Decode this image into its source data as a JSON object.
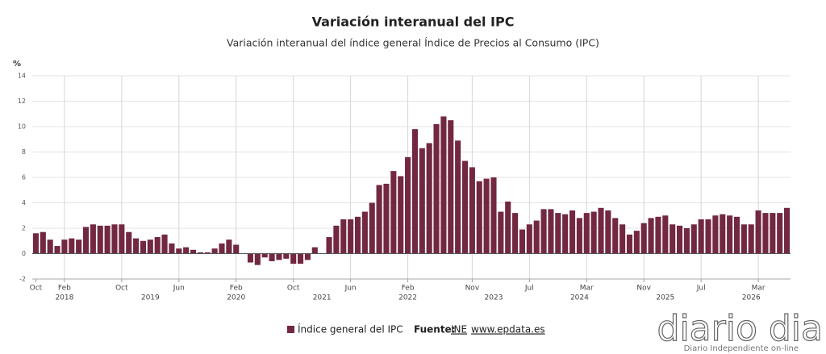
{
  "chart_data": {
    "type": "bar",
    "title": "Variación interanual del IPC",
    "subtitle": "Variación interanual del índice general Índice de Precios al Consumo (IPC)",
    "y_axis_label": "%",
    "series": [
      {
        "name": "Índice general del IPC",
        "color": "#722841",
        "values": [
          1.6,
          1.7,
          1.1,
          0.6,
          1.1,
          1.2,
          1.1,
          2.1,
          2.3,
          2.2,
          2.2,
          2.3,
          2.3,
          1.7,
          1.2,
          1.0,
          1.1,
          1.3,
          1.5,
          0.8,
          0.4,
          0.5,
          0.3,
          0.1,
          0.1,
          0.4,
          0.8,
          1.1,
          0.7,
          0.0,
          -0.7,
          -0.9,
          -0.3,
          -0.6,
          -0.5,
          -0.4,
          -0.8,
          -0.8,
          -0.5,
          0.5,
          0.0,
          1.3,
          2.2,
          2.7,
          2.7,
          2.9,
          3.3,
          4.0,
          5.4,
          5.5,
          6.5,
          6.1,
          7.6,
          9.8,
          8.3,
          8.7,
          10.2,
          10.8,
          10.5,
          8.9,
          7.3,
          6.8,
          5.7,
          5.9,
          6.0,
          3.3,
          4.1,
          3.2,
          1.9,
          2.3,
          2.6,
          3.5,
          3.5,
          3.2,
          3.1,
          3.4,
          2.8,
          3.2,
          3.3,
          3.6,
          3.4,
          2.8,
          2.3,
          1.5,
          1.8,
          2.4,
          2.8,
          2.9,
          3.0,
          2.3,
          2.2,
          2.0,
          2.3,
          2.7,
          2.7,
          3.0,
          3.1,
          3.0,
          2.9,
          2.3,
          2.3,
          3.4,
          3.2,
          3.2,
          3.2,
          3.6
        ]
      }
    ],
    "categories": [
      "Oct",
      null,
      null,
      null,
      "Feb",
      null,
      null,
      null,
      null,
      null,
      null,
      null,
      "Oct",
      null,
      null,
      null,
      null,
      null,
      null,
      null,
      "Jun",
      null,
      null,
      null,
      null,
      null,
      null,
      null,
      "Feb",
      null,
      null,
      null,
      null,
      null,
      null,
      null,
      "Oct",
      null,
      null,
      null,
      null,
      null,
      null,
      null,
      "Jun",
      null,
      null,
      null,
      null,
      null,
      null,
      null,
      "Feb",
      null,
      null,
      null,
      null,
      null,
      null,
      null,
      null,
      "Nov",
      null,
      null,
      null,
      null,
      null,
      null,
      null,
      "Jul",
      null,
      null,
      null,
      null,
      null,
      null,
      null,
      "Mar",
      null,
      null,
      null,
      null,
      null,
      null,
      null,
      "Nov",
      null,
      null,
      null,
      null,
      null,
      null,
      null,
      "Jul",
      null,
      null,
      null,
      null,
      null,
      null,
      null,
      "Mar",
      null,
      null,
      null,
      null
    ],
    "category_years": [
      null,
      null,
      null,
      null,
      "2018",
      null,
      null,
      null,
      null,
      null,
      null,
      null,
      null,
      null,
      null,
      null,
      "2019",
      null,
      null,
      null,
      null,
      null,
      null,
      null,
      null,
      null,
      null,
      null,
      "2020",
      null,
      null,
      null,
      null,
      null,
      null,
      null,
      null,
      null,
      null,
      null,
      "2021",
      null,
      null,
      null,
      null,
      null,
      null,
      null,
      null,
      null,
      null,
      null,
      "2022",
      null,
      null,
      null,
      null,
      null,
      null,
      null,
      null,
      null,
      null,
      null,
      "2023",
      null,
      null,
      null,
      null,
      null,
      null,
      null,
      null,
      null,
      null,
      null,
      "2024",
      null,
      null,
      null,
      null,
      null,
      null,
      null,
      null,
      null,
      null,
      null,
      "2025",
      null,
      null,
      null,
      null,
      null,
      null,
      null,
      null,
      null,
      null,
      null,
      "2026",
      null,
      null,
      null,
      null,
      null
    ],
    "ylim": [
      -2,
      14
    ],
    "yticks": [
      -2,
      0,
      2,
      4,
      6,
      8,
      10,
      12,
      14
    ],
    "grid": true,
    "legend_position": "bottom",
    "source_label": "Fuente:",
    "source_links": [
      "INE",
      "www.epdata.es"
    ],
    "watermark": "diario dia",
    "watermark_tagline": "Diario Independiente on-line"
  }
}
